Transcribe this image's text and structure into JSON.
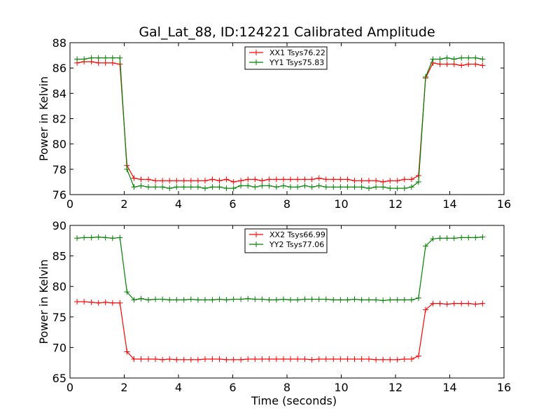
{
  "chart_data": [
    {
      "type": "line",
      "title": "Gal_Lat_88, ID:124221 Calibrated Amplitude",
      "xlabel": "",
      "ylabel": "Power in Kelvin",
      "xlim": [
        0,
        16
      ],
      "ylim": [
        76,
        88
      ],
      "xticks": [
        0,
        2,
        4,
        6,
        8,
        10,
        12,
        14,
        16
      ],
      "yticks": [
        76,
        78,
        80,
        82,
        84,
        86,
        88
      ],
      "grid": false,
      "legend_position": "top-center",
      "x": [
        0.26,
        0.52,
        0.79,
        1.05,
        1.31,
        1.57,
        1.84,
        2.1,
        2.36,
        2.62,
        2.89,
        3.15,
        3.41,
        3.67,
        3.93,
        4.2,
        4.46,
        4.72,
        4.98,
        5.25,
        5.51,
        5.77,
        6.03,
        6.3,
        6.56,
        6.82,
        7.08,
        7.34,
        7.61,
        7.87,
        8.13,
        8.39,
        8.66,
        8.92,
        9.18,
        9.44,
        9.71,
        9.97,
        10.23,
        10.49,
        10.75,
        11.02,
        11.28,
        11.54,
        11.8,
        12.07,
        12.33,
        12.59,
        12.85,
        13.11,
        13.38,
        13.64,
        13.9,
        14.16,
        14.43,
        14.69,
        14.95,
        15.21
      ],
      "series": [
        {
          "name": "XX1 Tsys76.22",
          "color": "#ff0000",
          "values": [
            86.4,
            86.5,
            86.5,
            86.4,
            86.4,
            86.4,
            86.3,
            78.3,
            77.3,
            77.2,
            77.2,
            77.1,
            77.1,
            77.1,
            77.1,
            77.1,
            77.1,
            77.1,
            77.1,
            77.2,
            77.1,
            77.2,
            77.0,
            77.1,
            77.2,
            77.2,
            77.1,
            77.2,
            77.2,
            77.2,
            77.2,
            77.2,
            77.2,
            77.2,
            77.3,
            77.2,
            77.2,
            77.2,
            77.2,
            77.1,
            77.1,
            77.1,
            77.1,
            77.0,
            77.1,
            77.1,
            77.2,
            77.2,
            77.5,
            85.2,
            86.4,
            86.3,
            86.3,
            86.3,
            86.2,
            86.3,
            86.3,
            86.2
          ]
        },
        {
          "name": "YY1 Tsys75.83",
          "color": "#008000",
          "values": [
            86.7,
            86.7,
            86.8,
            86.8,
            86.8,
            86.8,
            86.8,
            78.0,
            76.6,
            76.7,
            76.6,
            76.6,
            76.6,
            76.5,
            76.6,
            76.6,
            76.6,
            76.6,
            76.5,
            76.6,
            76.6,
            76.5,
            76.5,
            76.7,
            76.7,
            76.6,
            76.7,
            76.7,
            76.6,
            76.7,
            76.6,
            76.6,
            76.7,
            76.6,
            76.7,
            76.6,
            76.6,
            76.6,
            76.6,
            76.6,
            76.6,
            76.5,
            76.6,
            76.6,
            76.5,
            76.5,
            76.5,
            76.6,
            77.0,
            85.3,
            86.7,
            86.7,
            86.8,
            86.7,
            86.8,
            86.8,
            86.8,
            86.7
          ]
        }
      ]
    },
    {
      "type": "line",
      "title": "",
      "xlabel": "Time (seconds)",
      "ylabel": "Power in Kelvin",
      "xlim": [
        0,
        16
      ],
      "ylim": [
        65,
        90
      ],
      "xticks": [
        0,
        2,
        4,
        6,
        8,
        10,
        12,
        14,
        16
      ],
      "yticks": [
        65,
        70,
        75,
        80,
        85,
        90
      ],
      "grid": false,
      "legend_position": "top-center",
      "x": [
        0.26,
        0.52,
        0.79,
        1.05,
        1.31,
        1.57,
        1.84,
        2.1,
        2.36,
        2.62,
        2.89,
        3.15,
        3.41,
        3.67,
        3.93,
        4.2,
        4.46,
        4.72,
        4.98,
        5.25,
        5.51,
        5.77,
        6.03,
        6.3,
        6.56,
        6.82,
        7.08,
        7.34,
        7.61,
        7.87,
        8.13,
        8.39,
        8.66,
        8.92,
        9.18,
        9.44,
        9.71,
        9.97,
        10.23,
        10.49,
        10.75,
        11.02,
        11.28,
        11.54,
        11.8,
        12.07,
        12.33,
        12.59,
        12.85,
        13.11,
        13.38,
        13.64,
        13.9,
        14.16,
        14.43,
        14.69,
        14.95,
        15.21
      ],
      "series": [
        {
          "name": "XX2 Tsys66.99",
          "color": "#ff0000",
          "values": [
            77.5,
            77.5,
            77.4,
            77.3,
            77.4,
            77.3,
            77.3,
            69.3,
            68.1,
            68.1,
            68.1,
            68.1,
            68.0,
            68.1,
            68.0,
            68.0,
            68.0,
            68.0,
            68.1,
            68.1,
            68.1,
            68.0,
            68.0,
            68.0,
            68.1,
            68.1,
            68.1,
            68.1,
            68.1,
            68.1,
            68.1,
            68.1,
            68.1,
            68.0,
            68.1,
            68.1,
            68.1,
            68.1,
            68.1,
            68.1,
            68.1,
            68.1,
            68.0,
            68.0,
            68.0,
            68.0,
            68.1,
            68.1,
            68.6,
            76.2,
            77.2,
            77.2,
            77.1,
            77.2,
            77.2,
            77.2,
            77.1,
            77.2
          ]
        },
        {
          "name": "YY2 Tsys77.06",
          "color": "#008000",
          "values": [
            87.9,
            88.0,
            88.0,
            88.1,
            88.0,
            87.9,
            88.0,
            79.1,
            77.8,
            78.0,
            77.8,
            77.9,
            77.9,
            77.8,
            77.8,
            77.8,
            77.9,
            77.8,
            77.8,
            77.8,
            77.9,
            77.8,
            77.9,
            77.9,
            78.0,
            77.9,
            77.9,
            77.8,
            77.8,
            77.9,
            77.8,
            77.8,
            77.9,
            77.9,
            77.9,
            77.9,
            77.8,
            77.8,
            77.8,
            77.9,
            77.8,
            77.8,
            77.8,
            77.7,
            77.8,
            77.8,
            77.8,
            77.8,
            78.1,
            86.6,
            87.8,
            87.9,
            87.9,
            87.9,
            88.0,
            88.0,
            88.0,
            88.1
          ]
        }
      ]
    }
  ]
}
